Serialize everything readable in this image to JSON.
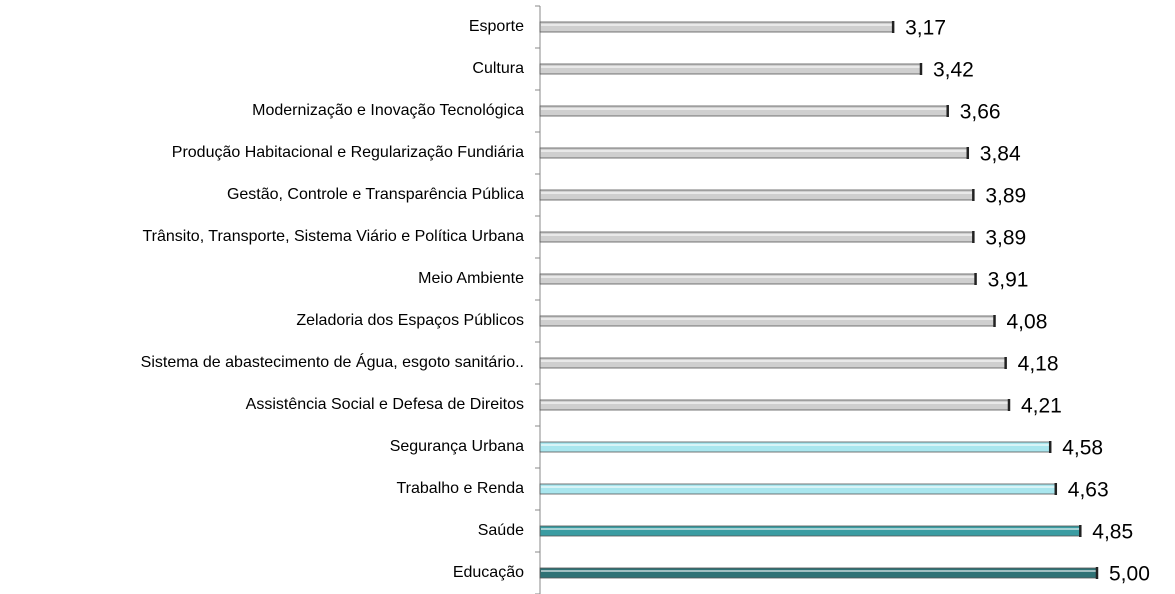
{
  "chart_data": {
    "type": "hbar",
    "categories": [
      "Esporte",
      "Cultura",
      "Modernização e Inovação Tecnológica",
      "Produção Habitacional e Regularização Fundiária",
      "Gestão, Controle e Transparência Pública",
      "Trânsito, Transporte, Sistema Viário e Política Urbana",
      "Meio Ambiente",
      "Zeladoria dos Espaços Públicos",
      "Sistema de abastecimento de Água, esgoto sanitário..",
      "Assistência Social e Defesa de Direitos",
      "Segurança Urbana",
      "Trabalho e Renda",
      "Saúde",
      "Educação"
    ],
    "values": [
      3.17,
      3.42,
      3.66,
      3.84,
      3.89,
      3.89,
      3.91,
      4.08,
      4.18,
      4.21,
      4.58,
      4.63,
      4.85,
      5.0
    ],
    "value_labels": [
      "3,17",
      "3,42",
      "3,66",
      "3,84",
      "3,89",
      "3,89",
      "3,91",
      "4,08",
      "4,18",
      "4,21",
      "4,58",
      "4,63",
      "4,85",
      "5,00"
    ],
    "colors": [
      "#cfcfcf",
      "#cfcfcf",
      "#cfcfcf",
      "#cfcfcf",
      "#cfcfcf",
      "#cfcfcf",
      "#cfcfcf",
      "#cfcfcf",
      "#cfcfcf",
      "#cfcfcf",
      "#a9e6ee",
      "#a9e6ee",
      "#3a9ca2",
      "#2f7275"
    ],
    "xlim": [
      0,
      5
    ]
  }
}
